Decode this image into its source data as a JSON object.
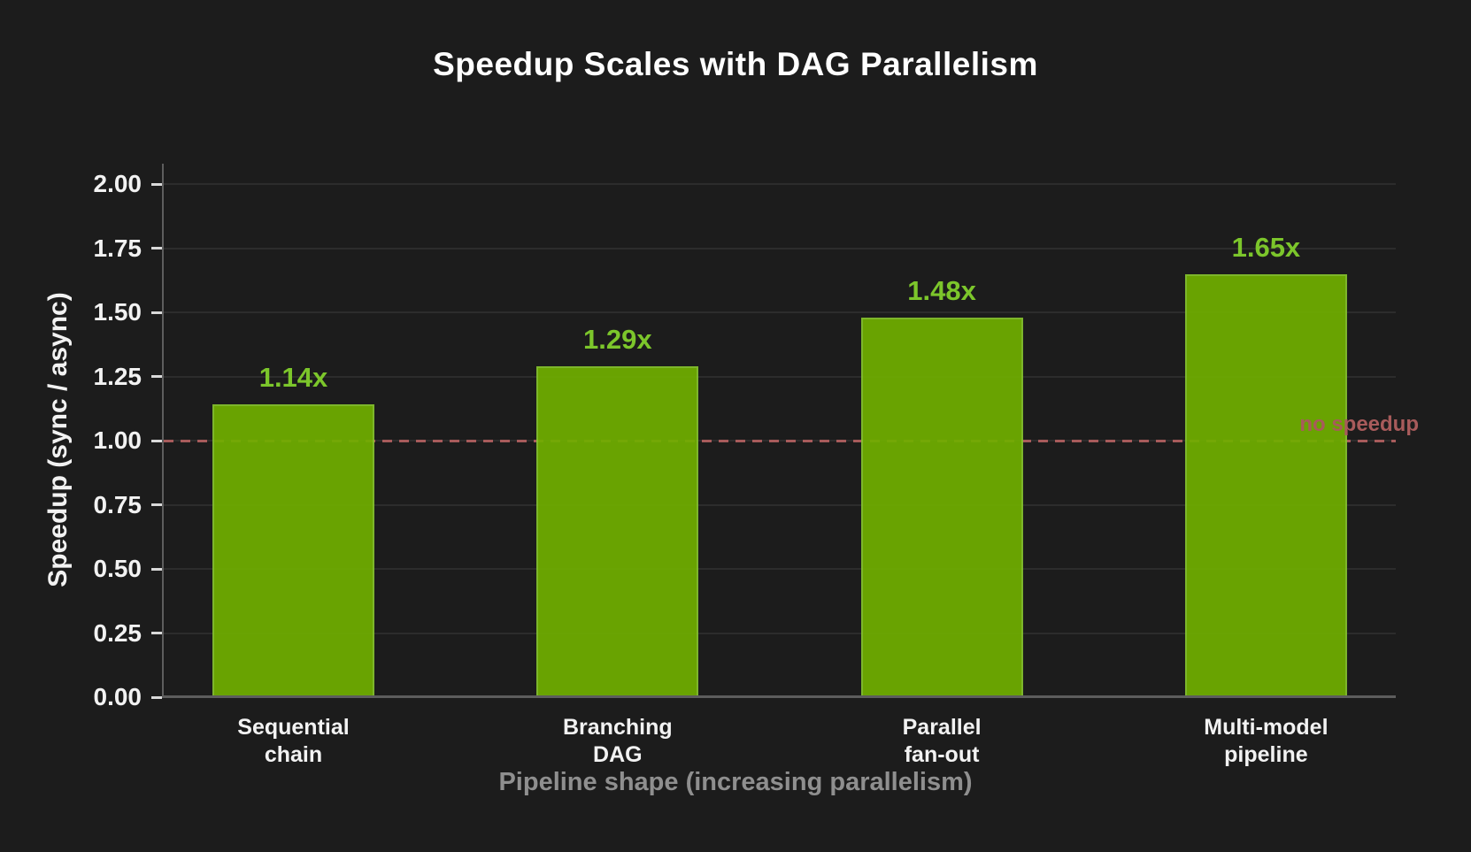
{
  "chart_data": {
    "type": "bar",
    "title": "Speedup Scales with DAG Parallelism",
    "categories": [
      "Sequential\nchain",
      "Branching\nDAG",
      "Parallel\nfan-out",
      "Multi-model\npipeline"
    ],
    "values": [
      1.14,
      1.29,
      1.48,
      1.65
    ],
    "bar_value_labels": [
      "1.14x",
      "1.29x",
      "1.48x",
      "1.65x"
    ],
    "xlabel": "Pipeline shape (increasing parallelism)",
    "ylabel": "Speedup (sync / async)",
    "ylim": [
      0,
      2.0
    ],
    "ytick_values": [
      0,
      0.25,
      0.5,
      0.75,
      1.0,
      1.25,
      1.5,
      1.75,
      2.0
    ],
    "ytick_labels": [
      "0.00",
      "0.25",
      "0.50",
      "0.75",
      "1.00",
      "1.25",
      "1.50",
      "1.75",
      "2.00"
    ],
    "grid": true,
    "legend": false,
    "reference_line": {
      "value": 1.0,
      "label": "no speedup",
      "style": "dashed"
    },
    "colors": {
      "background": "#1c1c1c",
      "bar_fill": "#6fae00",
      "bar_edge": "#85c22d",
      "value_label": "#7cc62b",
      "reference": "#a85b5b",
      "title_text": "#ffffff",
      "tick_text": "#f2f2f2",
      "ylabel_text": "#f2f2f2",
      "xlabel_text": "#8f8f8f",
      "spine": "#5d5d5d",
      "tick_mark": "#d9d9d9",
      "gridline": "rgba(255,255,255,0.075)"
    }
  }
}
